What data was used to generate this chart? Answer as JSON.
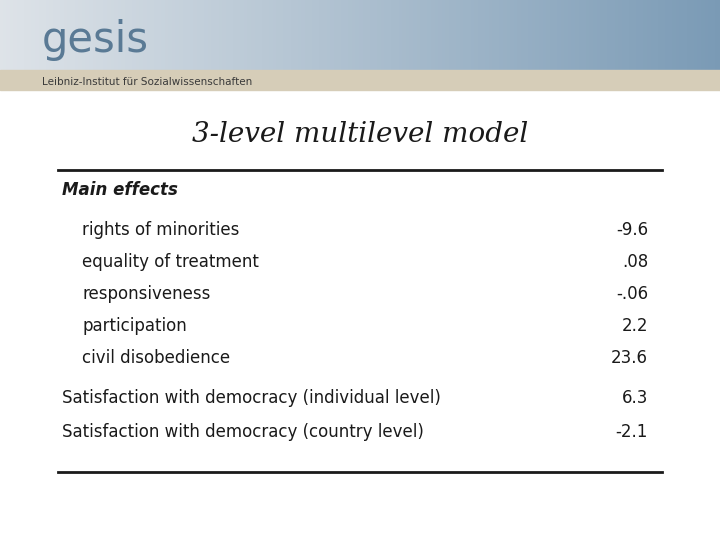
{
  "title": "3-level multilevel model",
  "title_fontsize": 20,
  "title_style": "italic",
  "title_font": "serif",
  "bg_color": "#ffffff",
  "header_gradient_left": "#e8ecef",
  "header_gradient_right": "#7a9ab5",
  "header_beige": "#d6cdb8",
  "table_rows": [
    {
      "label": "Main effects",
      "value": "",
      "indent": 0,
      "bold": true,
      "italic": true
    },
    {
      "label": "rights of minorities",
      "value": "-9.6",
      "indent": 1,
      "bold": false,
      "italic": false
    },
    {
      "label": "equality of treatment",
      "value": ".08",
      "indent": 1,
      "bold": false,
      "italic": false
    },
    {
      "label": "responsiveness",
      "value": "-.06",
      "indent": 1,
      "bold": false,
      "italic": false
    },
    {
      "label": "participation",
      "value": "2.2",
      "indent": 1,
      "bold": false,
      "italic": false
    },
    {
      "label": "civil disobedience",
      "value": "23.6",
      "indent": 1,
      "bold": false,
      "italic": false
    },
    {
      "label": "Satisfaction with democracy (individual level)",
      "value": "6.3",
      "indent": 0,
      "bold": false,
      "italic": false
    },
    {
      "label": "Satisfaction with democracy (country level)",
      "value": "-2.1",
      "indent": 0,
      "bold": false,
      "italic": false
    }
  ],
  "font_size_row": 12,
  "font_size_header": 12,
  "gesis_logo_text": "gesis",
  "gesis_subtitle_text": "Leibniz-Institut für Sozialwissenschaften",
  "text_color": "#1a1a1a",
  "gesis_text_color": "#5a7a95"
}
